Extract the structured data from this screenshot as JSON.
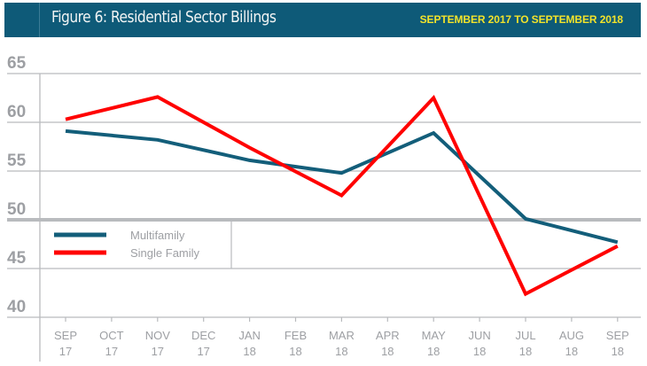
{
  "header": {
    "title": "Figure 6: Residential Sector Billings",
    "subtitle": "SEPTEMBER 2017 TO SEPTEMBER 2018"
  },
  "colors": {
    "header_bg": "#0e5a78",
    "subtitle": "#f2e32a",
    "multifamily": "#135e7a",
    "single_family": "#ff0000",
    "grid": "#b9bbbe",
    "axis_text": "#9d9fa3"
  },
  "chart_data": {
    "type": "line",
    "title": "Figure 6: Residential Sector Billings",
    "subtitle": "SEPTEMBER 2017 TO SEPTEMBER 2018",
    "xlabel": "",
    "ylabel": "",
    "ylim": [
      40,
      65
    ],
    "yticks": [
      65,
      60,
      55,
      50,
      45,
      40
    ],
    "baseline": 50,
    "grid": true,
    "legend_position": "left, below 50 baseline",
    "categories": [
      {
        "month": "SEP",
        "year": "17"
      },
      {
        "month": "OCT",
        "year": "17"
      },
      {
        "month": "NOV",
        "year": "17"
      },
      {
        "month": "DEC",
        "year": "17"
      },
      {
        "month": "JAN",
        "year": "18"
      },
      {
        "month": "FEB",
        "year": "18"
      },
      {
        "month": "MAR",
        "year": "18"
      },
      {
        "month": "APR",
        "year": "18"
      },
      {
        "month": "MAY",
        "year": "18"
      },
      {
        "month": "JUN",
        "year": "18"
      },
      {
        "month": "JUL",
        "year": "18"
      },
      {
        "month": "AUG",
        "year": "18"
      },
      {
        "month": "SEP",
        "year": "18"
      }
    ],
    "series": [
      {
        "name": "Multifamily",
        "color": "#135e7a",
        "points": [
          {
            "index": 0,
            "value": 59.1
          },
          {
            "index": 2,
            "value": 58.2
          },
          {
            "index": 4,
            "value": 56.1
          },
          {
            "index": 6,
            "value": 54.8
          },
          {
            "index": 8,
            "value": 58.9
          },
          {
            "index": 10,
            "value": 50.1
          },
          {
            "index": 12,
            "value": 47.7
          }
        ]
      },
      {
        "name": "Single Family",
        "color": "#ff0000",
        "points": [
          {
            "index": 0,
            "value": 60.3
          },
          {
            "index": 2,
            "value": 62.6
          },
          {
            "index": 4,
            "value": 57.4
          },
          {
            "index": 6,
            "value": 52.5
          },
          {
            "index": 8,
            "value": 62.5
          },
          {
            "index": 10,
            "value": 42.4
          },
          {
            "index": 12,
            "value": 47.3
          }
        ]
      }
    ]
  }
}
